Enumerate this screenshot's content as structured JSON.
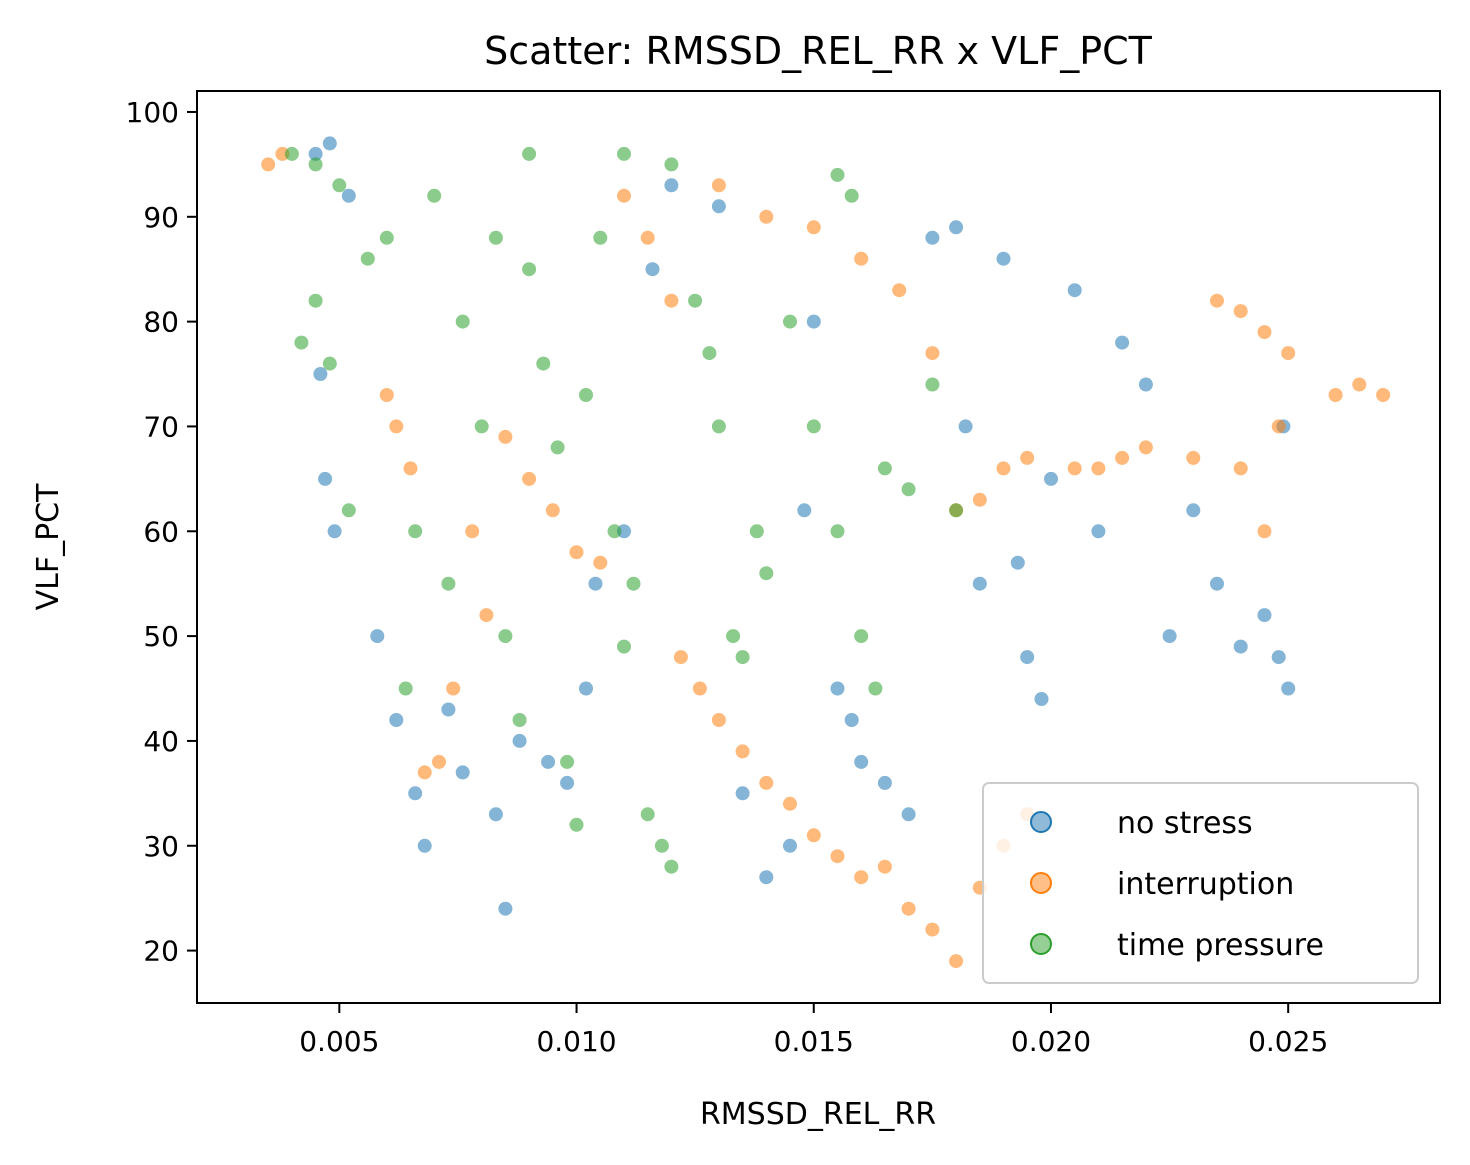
{
  "chart_data": {
    "type": "scatter",
    "title": "Scatter: RMSSD_REL_RR x VLF_PCT",
    "xlabel": "RMSSD_REL_RR",
    "ylabel": "VLF_PCT",
    "xlim": [
      0.002,
      0.0282
    ],
    "ylim": [
      15,
      102
    ],
    "xticks": [
      "0.005",
      "0.010",
      "0.015",
      "0.020",
      "0.025"
    ],
    "yticks": [
      "20",
      "30",
      "40",
      "50",
      "60",
      "70",
      "80",
      "90",
      "100"
    ],
    "grid": false,
    "legend_position": "lower-right",
    "series": [
      {
        "name": "no stress",
        "color": "#1f77b4",
        "points": [
          [
            0.0045,
            96
          ],
          [
            0.0048,
            97
          ],
          [
            0.0052,
            92
          ],
          [
            0.0046,
            75
          ],
          [
            0.0047,
            65
          ],
          [
            0.0049,
            60
          ],
          [
            0.0058,
            50
          ],
          [
            0.0062,
            42
          ],
          [
            0.0066,
            35
          ],
          [
            0.0068,
            30
          ],
          [
            0.0073,
            43
          ],
          [
            0.0076,
            37
          ],
          [
            0.0083,
            33
          ],
          [
            0.0085,
            24
          ],
          [
            0.0088,
            40
          ],
          [
            0.0094,
            38
          ],
          [
            0.0098,
            36
          ],
          [
            0.0102,
            45
          ],
          [
            0.0104,
            55
          ],
          [
            0.011,
            60
          ],
          [
            0.0116,
            85
          ],
          [
            0.012,
            93
          ],
          [
            0.013,
            91
          ],
          [
            0.0135,
            35
          ],
          [
            0.014,
            27
          ],
          [
            0.0145,
            30
          ],
          [
            0.0148,
            62
          ],
          [
            0.015,
            80
          ],
          [
            0.0155,
            45
          ],
          [
            0.0158,
            42
          ],
          [
            0.016,
            38
          ],
          [
            0.0165,
            36
          ],
          [
            0.017,
            33
          ],
          [
            0.0175,
            88
          ],
          [
            0.018,
            89
          ],
          [
            0.0182,
            70
          ],
          [
            0.0185,
            55
          ],
          [
            0.019,
            86
          ],
          [
            0.0193,
            57
          ],
          [
            0.0195,
            48
          ],
          [
            0.0198,
            44
          ],
          [
            0.02,
            65
          ],
          [
            0.0205,
            83
          ],
          [
            0.021,
            60
          ],
          [
            0.0215,
            78
          ],
          [
            0.022,
            74
          ],
          [
            0.0225,
            50
          ],
          [
            0.023,
            62
          ],
          [
            0.0235,
            55
          ],
          [
            0.024,
            49
          ],
          [
            0.0245,
            52
          ],
          [
            0.0248,
            48
          ],
          [
            0.025,
            45
          ],
          [
            0.0249,
            70
          ]
        ]
      },
      {
        "name": "interruption",
        "color": "#ff7f0e",
        "points": [
          [
            0.0035,
            95
          ],
          [
            0.0038,
            96
          ],
          [
            0.006,
            73
          ],
          [
            0.0062,
            70
          ],
          [
            0.0065,
            66
          ],
          [
            0.0068,
            37
          ],
          [
            0.0071,
            38
          ],
          [
            0.0074,
            45
          ],
          [
            0.0078,
            60
          ],
          [
            0.0081,
            52
          ],
          [
            0.0085,
            69
          ],
          [
            0.009,
            65
          ],
          [
            0.0095,
            62
          ],
          [
            0.01,
            58
          ],
          [
            0.0105,
            57
          ],
          [
            0.011,
            92
          ],
          [
            0.0115,
            88
          ],
          [
            0.012,
            82
          ],
          [
            0.0122,
            48
          ],
          [
            0.0126,
            45
          ],
          [
            0.013,
            42
          ],
          [
            0.0135,
            39
          ],
          [
            0.014,
            36
          ],
          [
            0.0145,
            34
          ],
          [
            0.015,
            31
          ],
          [
            0.0155,
            29
          ],
          [
            0.016,
            27
          ],
          [
            0.0165,
            28
          ],
          [
            0.017,
            24
          ],
          [
            0.0175,
            22
          ],
          [
            0.018,
            19
          ],
          [
            0.0185,
            26
          ],
          [
            0.019,
            30
          ],
          [
            0.0195,
            33
          ],
          [
            0.013,
            93
          ],
          [
            0.014,
            90
          ],
          [
            0.015,
            89
          ],
          [
            0.016,
            86
          ],
          [
            0.0168,
            83
          ],
          [
            0.0175,
            77
          ],
          [
            0.018,
            62
          ],
          [
            0.0185,
            63
          ],
          [
            0.019,
            66
          ],
          [
            0.0195,
            67
          ],
          [
            0.0205,
            66
          ],
          [
            0.021,
            66
          ],
          [
            0.0215,
            67
          ],
          [
            0.022,
            68
          ],
          [
            0.023,
            67
          ],
          [
            0.024,
            66
          ],
          [
            0.0245,
            60
          ],
          [
            0.0248,
            70
          ],
          [
            0.0235,
            82
          ],
          [
            0.024,
            81
          ],
          [
            0.0245,
            79
          ],
          [
            0.025,
            77
          ],
          [
            0.026,
            73
          ],
          [
            0.0265,
            74
          ],
          [
            0.027,
            73
          ]
        ]
      },
      {
        "name": "time pressure",
        "color": "#2ca02c",
        "points": [
          [
            0.004,
            96
          ],
          [
            0.0045,
            95
          ],
          [
            0.005,
            93
          ],
          [
            0.0042,
            78
          ],
          [
            0.0045,
            82
          ],
          [
            0.0048,
            76
          ],
          [
            0.0052,
            62
          ],
          [
            0.0056,
            86
          ],
          [
            0.006,
            88
          ],
          [
            0.0064,
            45
          ],
          [
            0.0066,
            60
          ],
          [
            0.007,
            92
          ],
          [
            0.0073,
            55
          ],
          [
            0.0076,
            80
          ],
          [
            0.008,
            70
          ],
          [
            0.0083,
            88
          ],
          [
            0.0085,
            50
          ],
          [
            0.0088,
            42
          ],
          [
            0.009,
            85
          ],
          [
            0.0093,
            76
          ],
          [
            0.0096,
            68
          ],
          [
            0.0098,
            38
          ],
          [
            0.01,
            32
          ],
          [
            0.0102,
            73
          ],
          [
            0.0105,
            88
          ],
          [
            0.0108,
            60
          ],
          [
            0.011,
            49
          ],
          [
            0.0112,
            55
          ],
          [
            0.0115,
            33
          ],
          [
            0.0118,
            30
          ],
          [
            0.012,
            28
          ],
          [
            0.0125,
            82
          ],
          [
            0.0128,
            77
          ],
          [
            0.013,
            70
          ],
          [
            0.0133,
            50
          ],
          [
            0.0135,
            48
          ],
          [
            0.0138,
            60
          ],
          [
            0.014,
            56
          ],
          [
            0.0145,
            80
          ],
          [
            0.015,
            70
          ],
          [
            0.0155,
            60
          ],
          [
            0.016,
            50
          ],
          [
            0.0163,
            45
          ],
          [
            0.0165,
            66
          ],
          [
            0.017,
            64
          ],
          [
            0.0175,
            74
          ],
          [
            0.018,
            62
          ],
          [
            0.0155,
            94
          ],
          [
            0.0158,
            92
          ],
          [
            0.012,
            95
          ],
          [
            0.011,
            96
          ],
          [
            0.009,
            96
          ]
        ]
      }
    ]
  }
}
